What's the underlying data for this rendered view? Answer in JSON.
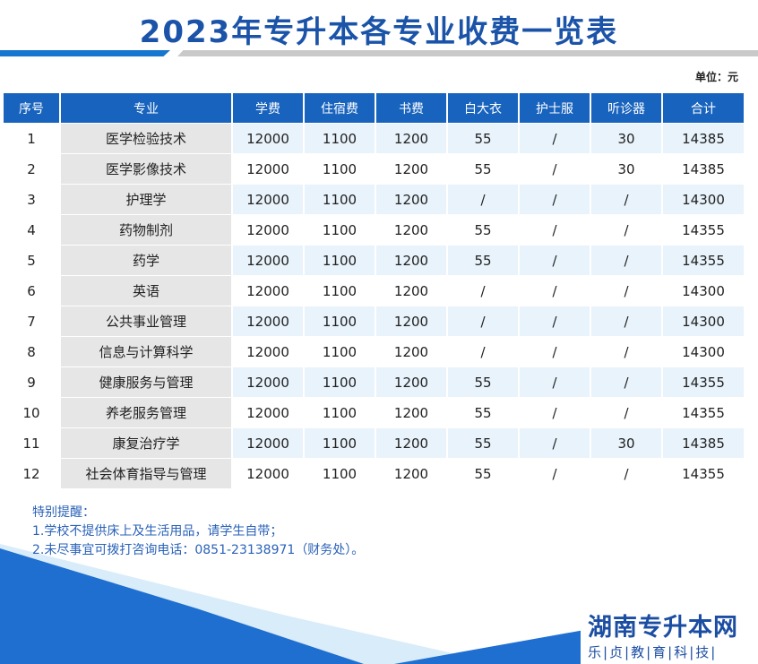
{
  "title": "2023年专升本各专业收费一览表",
  "unit": "单位：元",
  "columns": [
    "序号",
    "专业",
    "学费",
    "住宿费",
    "书费",
    "白大衣",
    "护士服",
    "听诊器",
    "合计"
  ],
  "rows": [
    [
      "1",
      "医学检验技术",
      "12000",
      "1100",
      "1200",
      "55",
      "/",
      "30",
      "14385"
    ],
    [
      "2",
      "医学影像技术",
      "12000",
      "1100",
      "1200",
      "55",
      "/",
      "30",
      "14385"
    ],
    [
      "3",
      "护理学",
      "12000",
      "1100",
      "1200",
      "/",
      "/",
      "/",
      "14300"
    ],
    [
      "4",
      "药物制剂",
      "12000",
      "1100",
      "1200",
      "55",
      "/",
      "/",
      "14355"
    ],
    [
      "5",
      "药学",
      "12000",
      "1100",
      "1200",
      "55",
      "/",
      "/",
      "14355"
    ],
    [
      "6",
      "英语",
      "12000",
      "1100",
      "1200",
      "/",
      "/",
      "/",
      "14300"
    ],
    [
      "7",
      "公共事业管理",
      "12000",
      "1100",
      "1200",
      "/",
      "/",
      "/",
      "14300"
    ],
    [
      "8",
      "信息与计算科学",
      "12000",
      "1100",
      "1200",
      "/",
      "/",
      "/",
      "14300"
    ],
    [
      "9",
      "健康服务与管理",
      "12000",
      "1100",
      "1200",
      "55",
      "/",
      "/",
      "14355"
    ],
    [
      "10",
      "养老服务管理",
      "12000",
      "1100",
      "1200",
      "55",
      "/",
      "/",
      "14355"
    ],
    [
      "11",
      "康复治疗学",
      "12000",
      "1100",
      "1200",
      "55",
      "/",
      "30",
      "14385"
    ],
    [
      "12",
      "社会体育指导与管理",
      "12000",
      "1100",
      "1200",
      "55",
      "/",
      "/",
      "14355"
    ]
  ],
  "notes": {
    "heading": "特别提醒：",
    "items": [
      "1.学校不提供床上及生活用品，请学生自带；",
      "2.未尽事宜可拨打咨询电话：0851-23138971（财务处）。"
    ]
  },
  "brand": {
    "name": "湖南专升本网",
    "tagline": "乐|贞|教|育|科|技|"
  },
  "colors": {
    "title": "#1a53a8",
    "header_bg": "#1863bd",
    "row_alt": "#e8f3fb",
    "major_col": "#e6e6e6",
    "notes": "#2a62b8",
    "accent": "#1e6fd0"
  }
}
